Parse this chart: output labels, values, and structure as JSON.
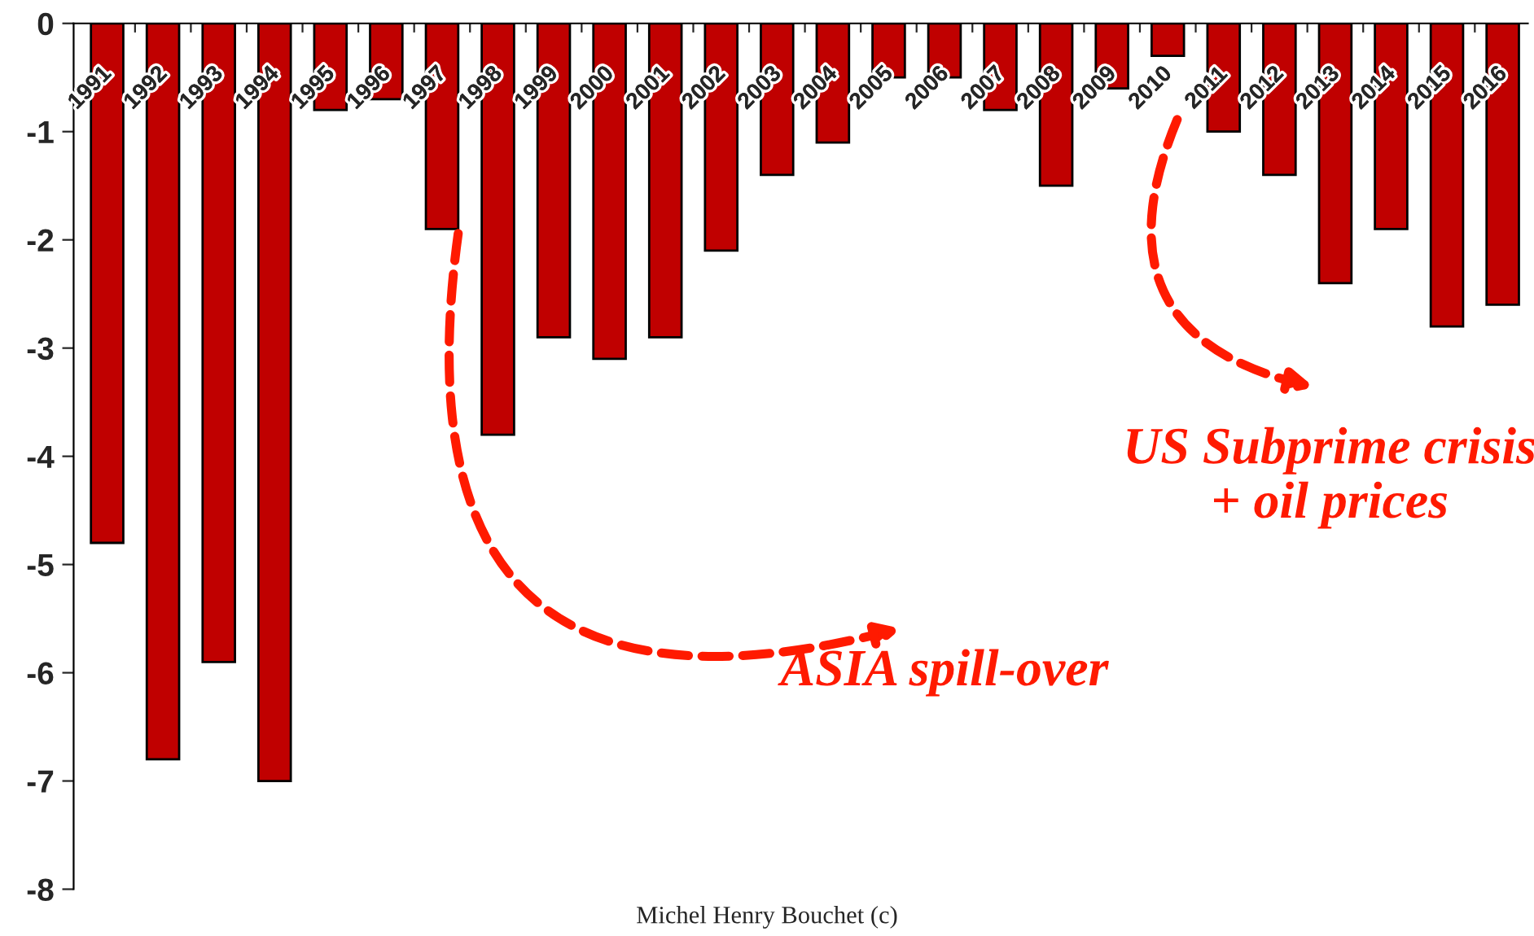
{
  "chart_data": {
    "type": "bar",
    "categories": [
      "1991",
      "1992",
      "1993",
      "1994",
      "1995",
      "1996",
      "1997",
      "1998",
      "1999",
      "2000",
      "2001",
      "2002",
      "2003",
      "2004",
      "2005",
      "2006",
      "2007",
      "2008",
      "2009",
      "2010",
      "2011",
      "2012",
      "2013",
      "2014",
      "2015",
      "2016"
    ],
    "values": [
      -4.8,
      -6.8,
      -5.9,
      -7.0,
      -0.8,
      -0.7,
      -1.9,
      -3.8,
      -2.9,
      -3.1,
      -2.9,
      -2.1,
      -1.4,
      -1.1,
      -0.5,
      -0.5,
      -0.8,
      -1.5,
      -0.6,
      -0.3,
      -1.0,
      -1.4,
      -2.4,
      -1.9,
      -2.8,
      -2.6
    ],
    "color": "#c00000",
    "ylim": [
      -8,
      0
    ],
    "yticks": [
      -8,
      -7,
      -6,
      -5,
      -4,
      -3,
      -2,
      -1,
      0
    ],
    "grid": false,
    "legend": false,
    "annotations": [
      "ASIA spill-over",
      "US Subprime crisis\n+ oil prices",
      "Michel Henry Bouchet (c)"
    ]
  }
}
